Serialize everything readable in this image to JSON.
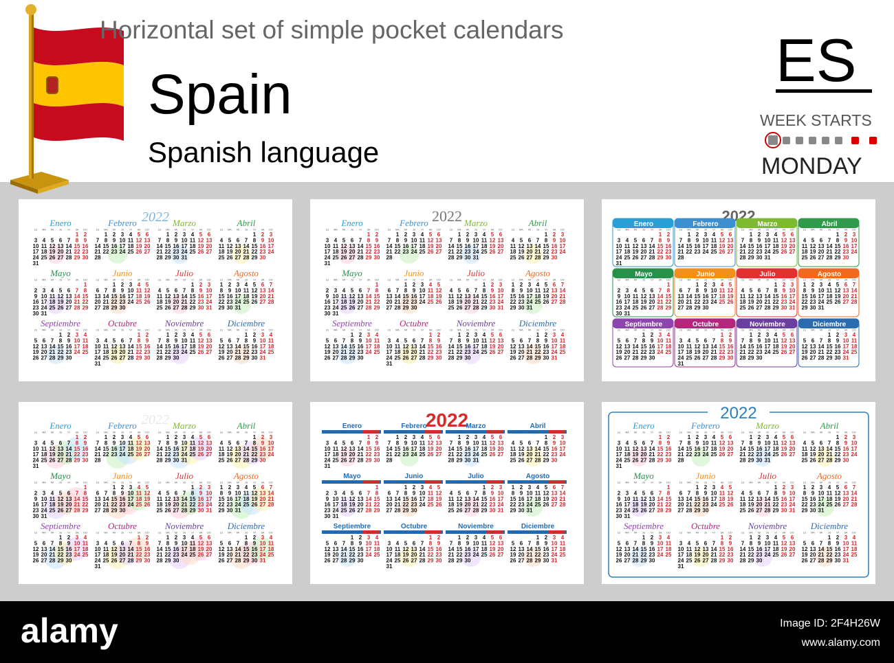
{
  "header": {
    "title": "Horizontal set of simple pocket calendars",
    "country": "Spain",
    "language": "Spanish language",
    "code": "ES",
    "week_starts_label": "WEEK STARTS",
    "week_starts_day": "MONDAY"
  },
  "weekdays": [
    "LU",
    "MA",
    "MI",
    "JU",
    "VI",
    "SA",
    "DO"
  ],
  "months": [
    {
      "name": "Enero",
      "weeks": [
        [
          null,
          null,
          null,
          null,
          null,
          1,
          2
        ],
        [
          3,
          4,
          5,
          6,
          7,
          8,
          9
        ],
        [
          10,
          11,
          12,
          13,
          14,
          15,
          16
        ],
        [
          17,
          18,
          19,
          20,
          21,
          22,
          23
        ],
        [
          24,
          25,
          26,
          27,
          28,
          29,
          30
        ],
        [
          31
        ]
      ]
    },
    {
      "name": "Febrero",
      "weeks": [
        [
          null,
          1,
          2,
          3,
          4,
          5,
          6
        ],
        [
          7,
          8,
          9,
          10,
          11,
          12,
          13
        ],
        [
          14,
          15,
          16,
          17,
          18,
          19,
          20
        ],
        [
          21,
          22,
          23,
          24,
          25,
          26,
          27
        ],
        [
          28
        ]
      ]
    },
    {
      "name": "Marzo",
      "weeks": [
        [
          null,
          1,
          2,
          3,
          4,
          5,
          6
        ],
        [
          7,
          8,
          9,
          10,
          11,
          12,
          13
        ],
        [
          14,
          15,
          16,
          17,
          18,
          19,
          20
        ],
        [
          21,
          22,
          23,
          24,
          25,
          26,
          27
        ],
        [
          28,
          29,
          30,
          31
        ]
      ]
    },
    {
      "name": "Abril",
      "weeks": [
        [
          null,
          null,
          null,
          null,
          1,
          2,
          3
        ],
        [
          4,
          5,
          6,
          7,
          8,
          9,
          10
        ],
        [
          11,
          12,
          13,
          14,
          15,
          16,
          17
        ],
        [
          18,
          19,
          20,
          21,
          22,
          23,
          24
        ],
        [
          25,
          26,
          27,
          28,
          29,
          30
        ]
      ]
    },
    {
      "name": "Mayo",
      "weeks": [
        [
          null,
          null,
          null,
          null,
          null,
          null,
          1
        ],
        [
          2,
          3,
          4,
          5,
          6,
          7,
          8
        ],
        [
          9,
          10,
          11,
          12,
          13,
          14,
          15
        ],
        [
          16,
          17,
          18,
          19,
          20,
          21,
          22
        ],
        [
          23,
          24,
          25,
          26,
          27,
          28,
          29
        ],
        [
          30,
          31
        ]
      ]
    },
    {
      "name": "Junio",
      "weeks": [
        [
          null,
          null,
          1,
          2,
          3,
          4,
          5
        ],
        [
          6,
          7,
          8,
          9,
          10,
          11,
          12
        ],
        [
          13,
          14,
          15,
          16,
          17,
          18,
          19
        ],
        [
          20,
          21,
          22,
          23,
          24,
          25,
          26
        ],
        [
          27,
          28,
          29,
          30
        ]
      ]
    },
    {
      "name": "Julio",
      "weeks": [
        [
          null,
          null,
          null,
          null,
          1,
          2,
          3
        ],
        [
          4,
          5,
          6,
          7,
          8,
          9,
          10
        ],
        [
          11,
          12,
          13,
          14,
          15,
          16,
          17
        ],
        [
          18,
          19,
          20,
          21,
          22,
          23,
          24
        ],
        [
          25,
          26,
          27,
          28,
          29,
          30,
          31
        ]
      ]
    },
    {
      "name": "Agosto",
      "weeks": [
        [
          1,
          2,
          3,
          4,
          5,
          6,
          7
        ],
        [
          8,
          9,
          10,
          11,
          12,
          13,
          14
        ],
        [
          15,
          16,
          17,
          18,
          19,
          20,
          21
        ],
        [
          22,
          23,
          24,
          25,
          26,
          27,
          28
        ],
        [
          29,
          30,
          31
        ]
      ]
    },
    {
      "name": "Septiembre",
      "weeks": [
        [
          null,
          null,
          null,
          1,
          2,
          3,
          4
        ],
        [
          5,
          6,
          7,
          8,
          9,
          10,
          11
        ],
        [
          12,
          13,
          14,
          15,
          16,
          17,
          18
        ],
        [
          19,
          20,
          21,
          22,
          23,
          24,
          25
        ],
        [
          26,
          27,
          28,
          29,
          30
        ]
      ]
    },
    {
      "name": "Octubre",
      "weeks": [
        [
          null,
          null,
          null,
          null,
          null,
          1,
          2
        ],
        [
          3,
          4,
          5,
          6,
          7,
          8,
          9
        ],
        [
          10,
          11,
          12,
          13,
          14,
          15,
          16
        ],
        [
          17,
          18,
          19,
          20,
          21,
          22,
          23
        ],
        [
          24,
          25,
          26,
          27,
          28,
          29,
          30
        ],
        [
          31
        ]
      ]
    },
    {
      "name": "Noviembre",
      "weeks": [
        [
          null,
          1,
          2,
          3,
          4,
          5,
          6
        ],
        [
          7,
          8,
          9,
          10,
          11,
          12,
          13
        ],
        [
          14,
          15,
          16,
          17,
          18,
          19,
          20
        ],
        [
          21,
          22,
          23,
          24,
          25,
          26,
          27
        ],
        [
          28,
          29,
          30
        ]
      ]
    },
    {
      "name": "Diciembre",
      "weeks": [
        [
          null,
          null,
          null,
          1,
          2,
          3,
          4
        ],
        [
          5,
          6,
          7,
          8,
          9,
          10,
          11
        ],
        [
          12,
          13,
          14,
          15,
          16,
          17,
          18
        ],
        [
          19,
          20,
          21,
          22,
          23,
          24,
          25
        ],
        [
          26,
          27,
          28,
          29,
          30,
          31
        ]
      ]
    }
  ],
  "calendars": [
    {
      "year": "2022",
      "style": "script"
    },
    {
      "year": "2022",
      "style": "script-plain"
    },
    {
      "year": "2022",
      "style": "tabs"
    },
    {
      "year": "2022",
      "style": "script-pastel"
    },
    {
      "year": "2022",
      "style": "bars"
    },
    {
      "year": "2022",
      "style": "framed"
    }
  ],
  "footer": {
    "brand": "alamy",
    "image_id": "Image ID: 2F4H26W",
    "url": "www.alamy.com"
  }
}
